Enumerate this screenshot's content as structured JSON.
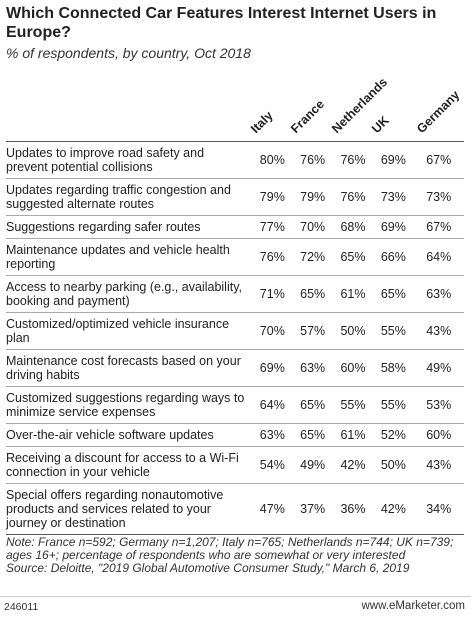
{
  "header": {
    "title": "Which Connected Car Features Interest Internet Users in Europe?",
    "subtitle": "% of respondents, by country, Oct 2018"
  },
  "table": {
    "columns": [
      "Italy",
      "France",
      "Netherlands",
      "UK",
      "Germany"
    ],
    "rows": [
      {
        "label": "Updates to improve road safety and prevent potential collisions",
        "values": [
          "80%",
          "76%",
          "76%",
          "69%",
          "67%"
        ]
      },
      {
        "label": "Updates regarding traffic congestion and suggested alternate routes",
        "values": [
          "79%",
          "79%",
          "76%",
          "73%",
          "73%"
        ]
      },
      {
        "label": "Suggestions regarding safer routes",
        "values": [
          "77%",
          "70%",
          "68%",
          "69%",
          "67%"
        ]
      },
      {
        "label": "Maintenance updates and vehicle health reporting",
        "values": [
          "76%",
          "72%",
          "65%",
          "66%",
          "64%"
        ]
      },
      {
        "label": "Access to nearby parking (e.g., availability, booking and payment)",
        "values": [
          "71%",
          "65%",
          "61%",
          "65%",
          "63%"
        ]
      },
      {
        "label": "Customized/optimized vehicle insurance plan",
        "values": [
          "70%",
          "57%",
          "50%",
          "55%",
          "43%"
        ]
      },
      {
        "label": "Maintenance cost forecasts based on your driving habits",
        "values": [
          "69%",
          "63%",
          "60%",
          "58%",
          "49%"
        ]
      },
      {
        "label": "Customized suggestions regarding ways to minimize service expenses",
        "values": [
          "64%",
          "65%",
          "55%",
          "55%",
          "53%"
        ]
      },
      {
        "label": "Over-the-air vehicle software updates",
        "values": [
          "63%",
          "65%",
          "61%",
          "52%",
          "60%"
        ]
      },
      {
        "label": "Receiving a discount for access to a Wi-Fi connection in your vehicle",
        "values": [
          "54%",
          "49%",
          "42%",
          "50%",
          "43%"
        ]
      },
      {
        "label": "Special offers regarding nonautomotive products and services related to your journey or destination",
        "values": [
          "47%",
          "37%",
          "36%",
          "42%",
          "34%"
        ]
      }
    ]
  },
  "footer": {
    "note": "Note: France n=592; Germany n=1,207; Italy n=765; Netherlands n=744; UK n=739; ages 16+; percentage of respondents who are somewhat or very interested",
    "source": "Source: Deloitte, \"2019 Global Automotive Consumer Study,\" March 6, 2019",
    "id": "246011",
    "site": "www.eMarketer.com"
  }
}
